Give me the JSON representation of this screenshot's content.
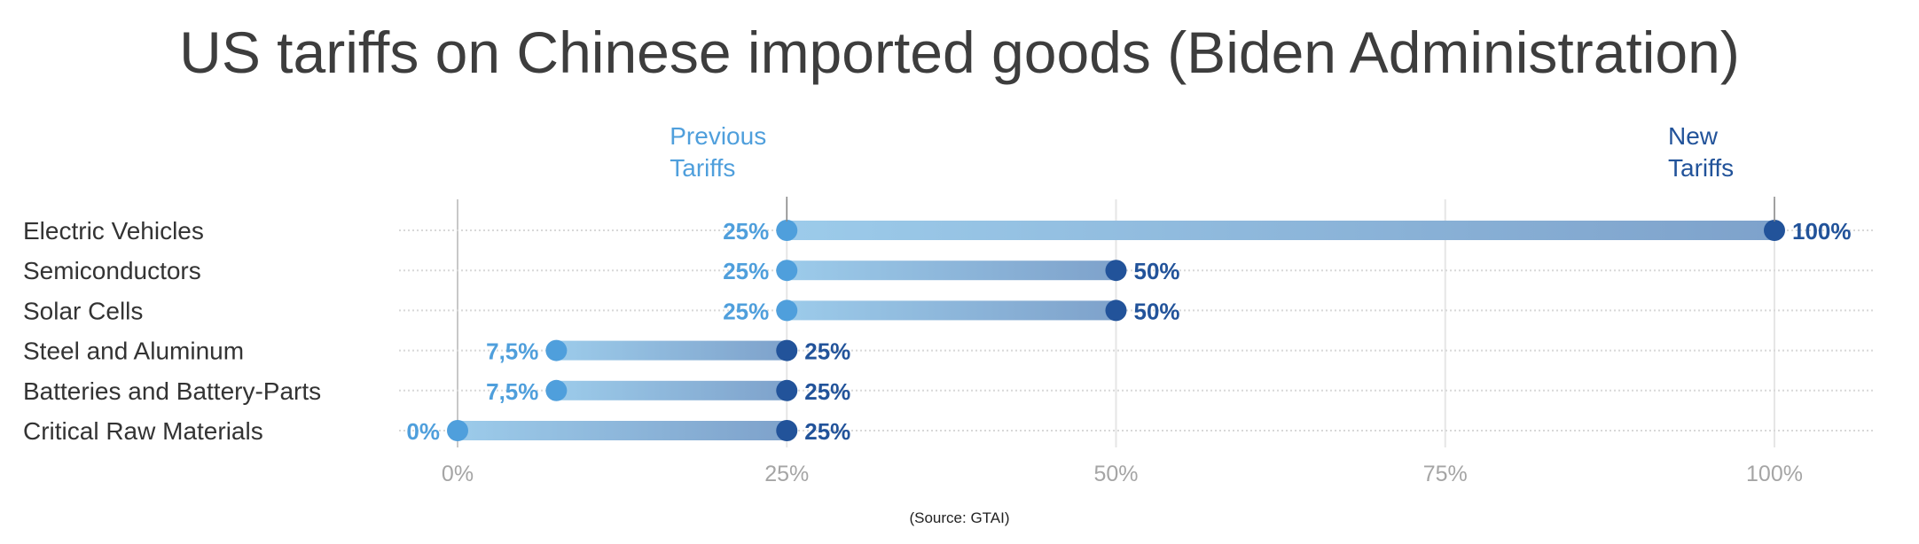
{
  "chart_data": {
    "type": "dumbbell",
    "title": "US tariffs on Chinese imported goods (Biden Administration)",
    "source": "(Source: GTAI)",
    "series_labels": {
      "previous": "Previous Tariffs",
      "new": "New Tariffs"
    },
    "categories": [
      "Electric Vehicles",
      "Semiconductors",
      "Solar Cells",
      "Steel and Aluminum",
      "Batteries and Battery-Parts",
      "Critical Raw Materials"
    ],
    "series": [
      {
        "name": "Previous Tariffs",
        "values": [
          25,
          25,
          25,
          7.5,
          7.5,
          0
        ],
        "labels": [
          "25%",
          "25%",
          "25%",
          "7,5%",
          "7,5%",
          "0%"
        ]
      },
      {
        "name": "New Tariffs",
        "values": [
          100,
          50,
          50,
          25,
          25,
          25
        ],
        "labels": [
          "100%",
          "50%",
          "50%",
          "25%",
          "25%",
          "25%"
        ]
      }
    ],
    "xlim": [
      0,
      100
    ],
    "xticks": [
      0,
      25,
      50,
      75,
      100
    ],
    "xtick_labels": [
      "0%",
      "25%",
      "50%",
      "75%",
      "100%"
    ],
    "grid": true,
    "colors": {
      "previous": "#4f9fdc",
      "new": "#22539a",
      "bar_start": "#9ccbea",
      "bar_end": "#7ea2cb",
      "title": "#3d3d3d"
    }
  }
}
